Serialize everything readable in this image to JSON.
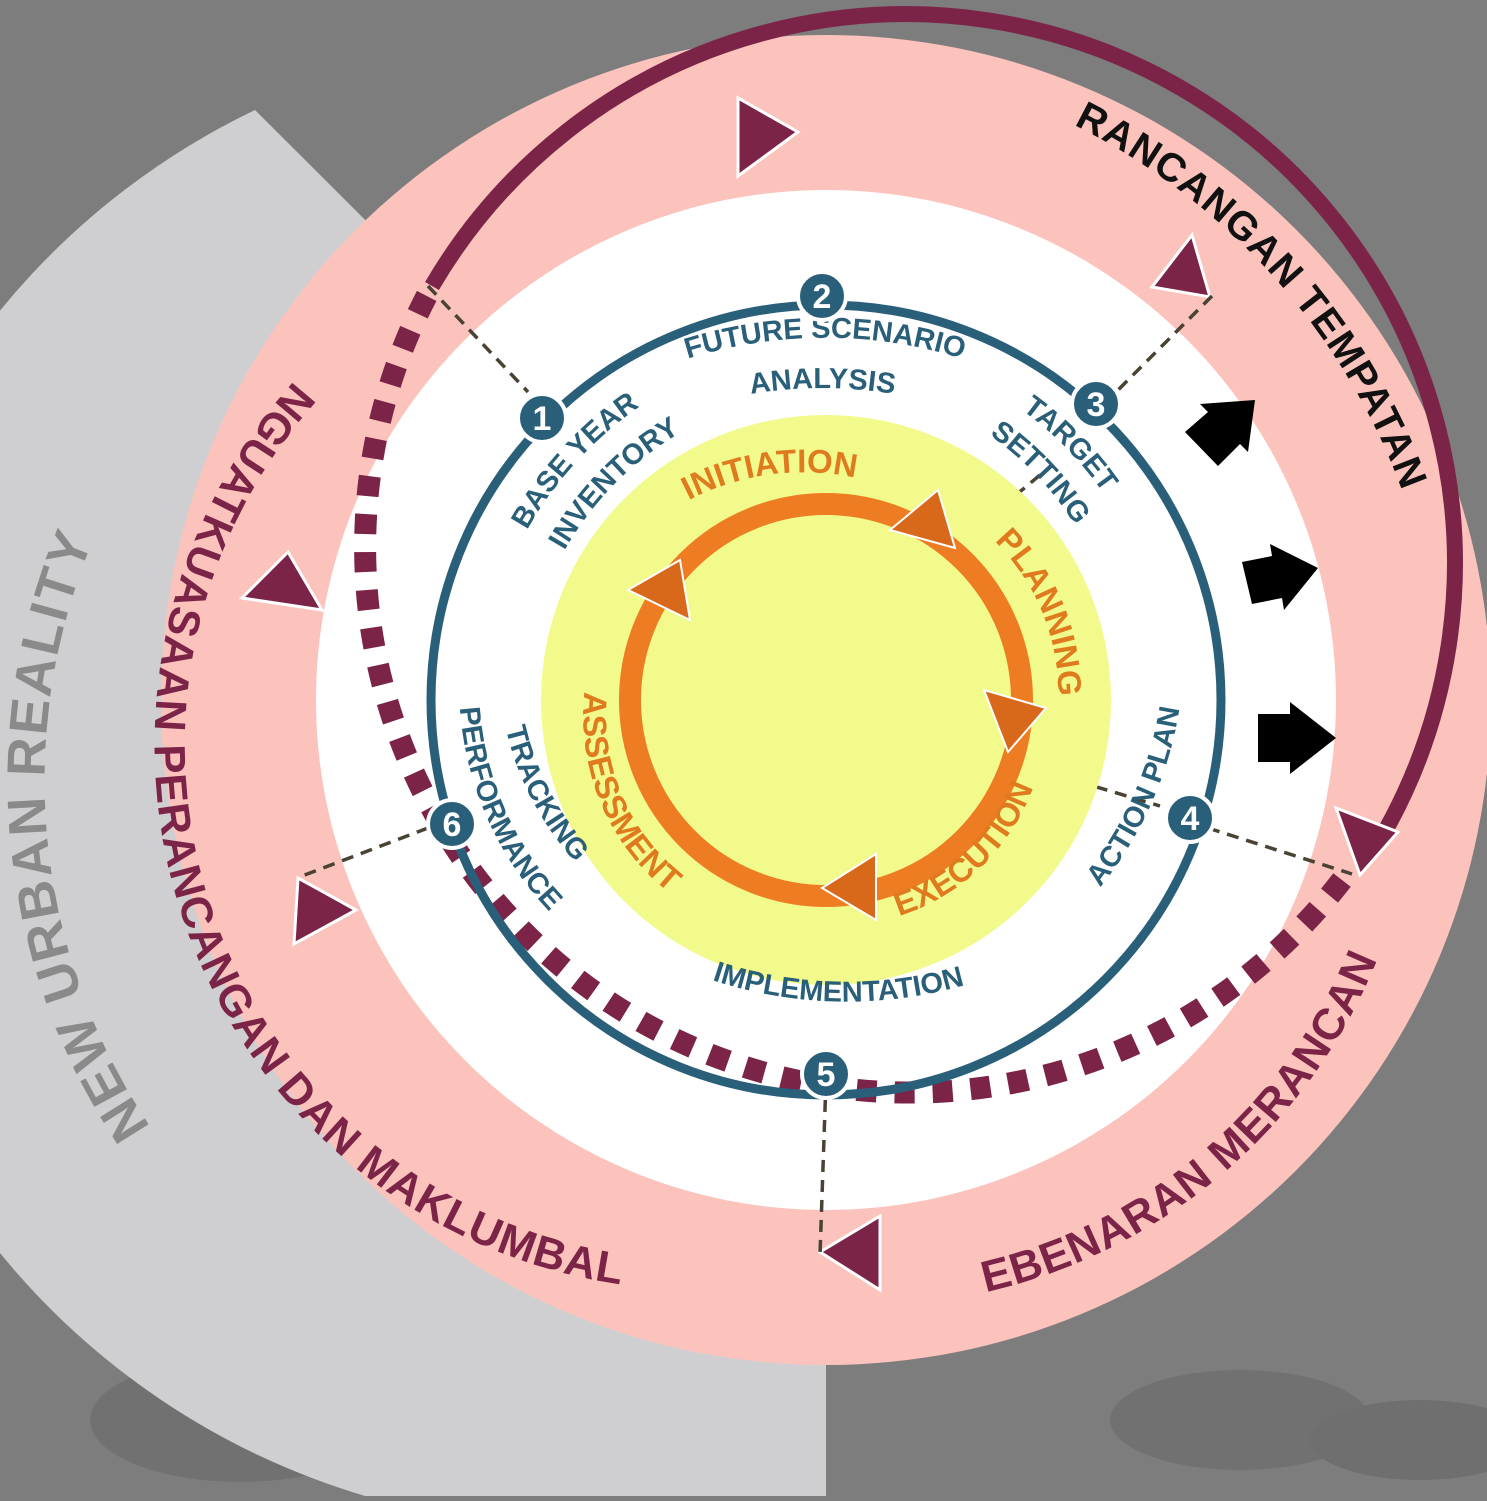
{
  "background_label": "NEW URBAN REALITY",
  "outer_ring": {
    "top_label": "RANCANGAN TEMPATAN",
    "left_label": "PENGUATKUASAAN PERANCANGAN DAN MAKLUMBALAS",
    "bottom_right_label": "KEBENARAN MERANCANG"
  },
  "steps": [
    {
      "number": "1",
      "lines": [
        "BASE YEAR",
        "INVENTORY"
      ]
    },
    {
      "number": "2",
      "lines": [
        "FUTURE SCENARIO",
        "ANALYSIS"
      ]
    },
    {
      "number": "3",
      "lines": [
        "TARGET",
        "SETTING"
      ]
    },
    {
      "number": "4",
      "lines": [
        "ACTION PLAN"
      ]
    },
    {
      "number": "5",
      "lines": [
        "IMPLEMENTATION"
      ]
    },
    {
      "number": "6",
      "lines": [
        "TRACKING",
        "PERFORMANCE"
      ]
    }
  ],
  "phases": [
    "INITIATION",
    "PLANNING",
    "EXECUTION",
    "ASSESSMENT"
  ],
  "colors": {
    "background": "#7d7d7d",
    "grey_band": "#cfcfd1",
    "outer_ring": "#fcc3bc",
    "maroon": "#7b2448",
    "step_ring": "#2a5f7a",
    "core_yellow": "#f1fa8a",
    "phase_orange": "#ee7c22",
    "phase_arrow": "#d9691a"
  }
}
